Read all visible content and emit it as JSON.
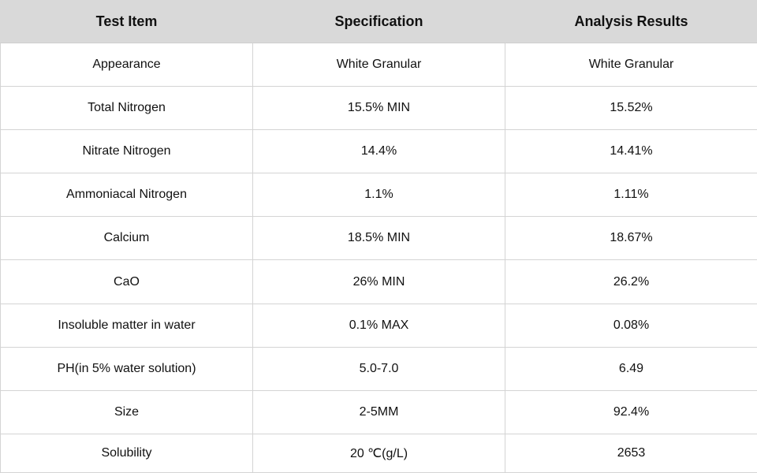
{
  "table": {
    "headers": [
      "Test Item",
      "Specification",
      "Analysis Results"
    ],
    "rows": [
      [
        "Appearance",
        "White Granular",
        "White Granular"
      ],
      [
        "Total Nitrogen",
        "15.5% MIN",
        "15.52%"
      ],
      [
        "Nitrate Nitrogen",
        "14.4%",
        "14.41%"
      ],
      [
        "Ammoniacal Nitrogen",
        "1.1%",
        "1.11%"
      ],
      [
        "Calcium",
        "18.5% MIN",
        "18.67%"
      ],
      [
        "CaO",
        "26% MIN",
        "26.2%"
      ],
      [
        "Insoluble matter in water",
        "0.1% MAX",
        "0.08%"
      ],
      [
        "PH(in 5% water solution)",
        "5.0-7.0",
        "6.49"
      ],
      [
        "Size",
        "2-5MM",
        "92.4%"
      ],
      [
        "Solubility",
        "20 ℃(g/L)",
        "2653"
      ]
    ]
  },
  "colors": {
    "header_background": "#d9d9d9",
    "border": "#d4d4d4",
    "text": "#111111"
  }
}
